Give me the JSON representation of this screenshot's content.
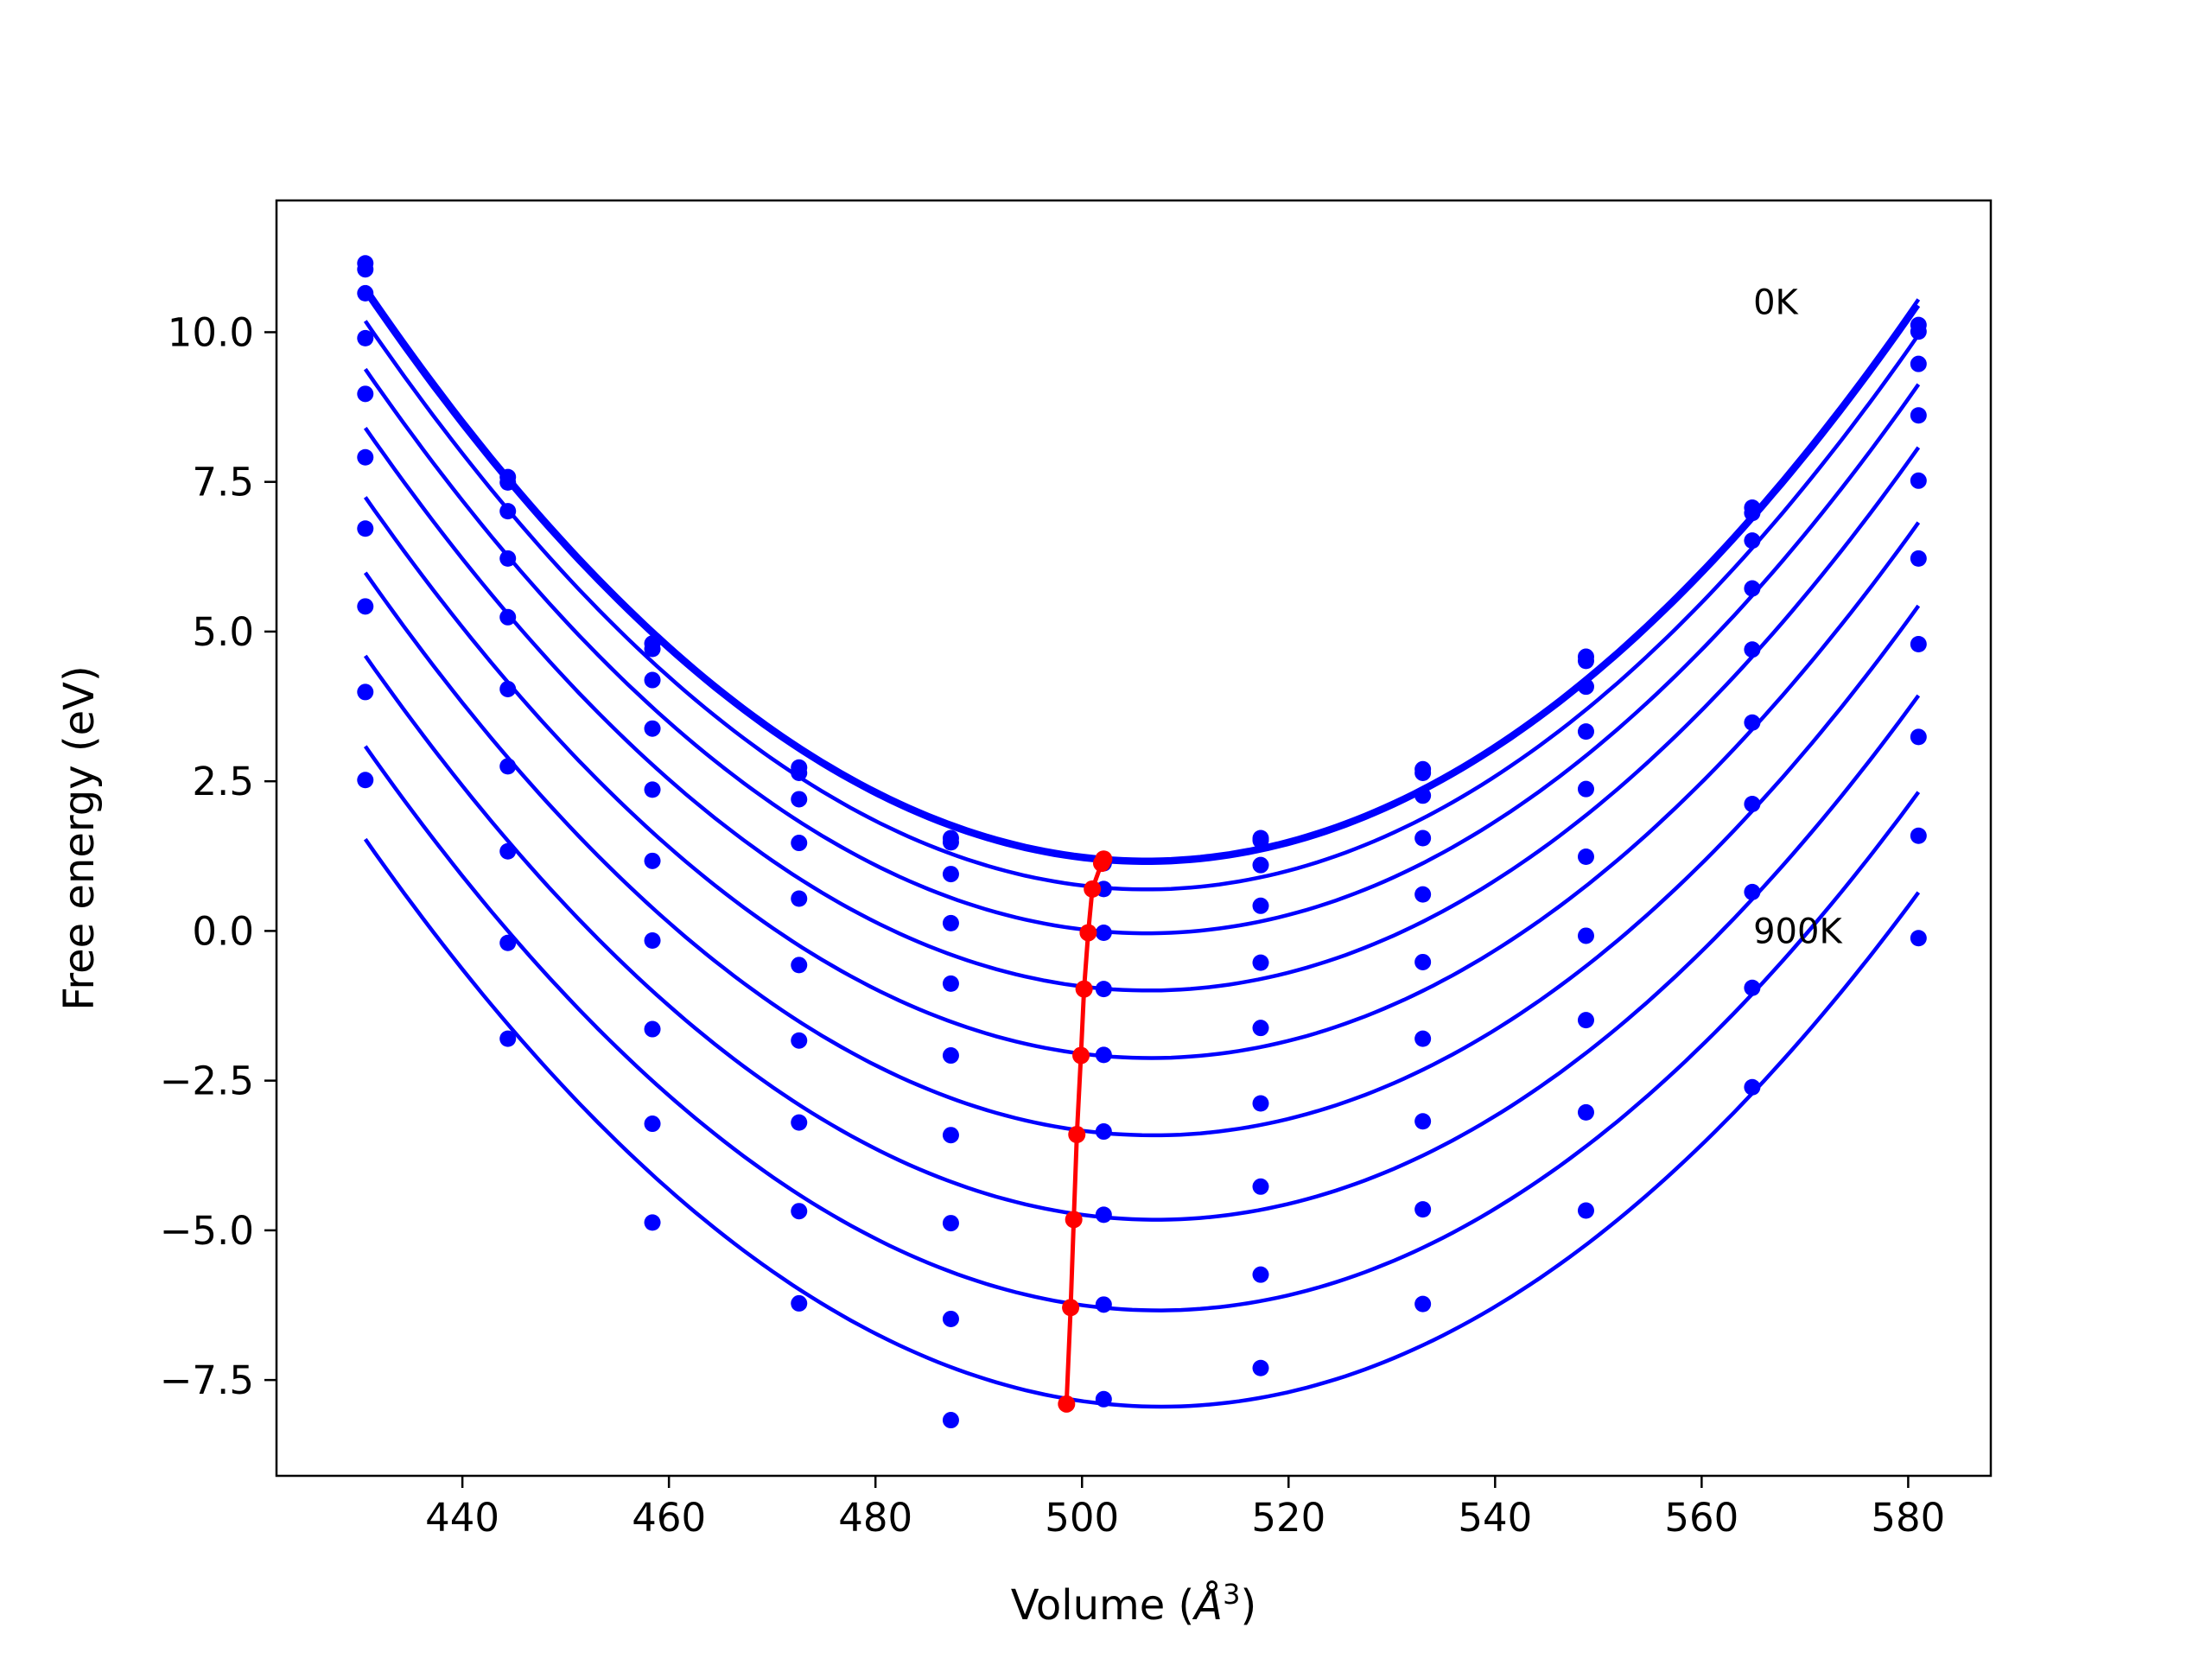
{
  "chart_data": {
    "type": "line",
    "title": "",
    "xlabel": "Volume",
    "xlabel_unit": "Å",
    "xlabel_unit_exponent": "3",
    "ylabel": "Free energy (eV)",
    "xlim": [
      422,
      588
    ],
    "ylim": [
      -9.1,
      12.2
    ],
    "x_ticks": [
      440,
      460,
      480,
      500,
      520,
      540,
      560,
      580
    ],
    "y_ticks": [
      10.0,
      7.5,
      5.0,
      2.5,
      0.0,
      -2.5,
      -5.0,
      -7.5
    ],
    "x_tick_labels": [
      "440",
      "460",
      "480",
      "500",
      "520",
      "540",
      "560",
      "580"
    ],
    "y_tick_labels": [
      "10.0",
      "7.5",
      "5.0",
      "2.5",
      "0.0",
      "−2.5",
      "−5.0",
      "−7.5"
    ],
    "grid": false,
    "annotations": [
      {
        "text": "0K",
        "x": 565,
        "y": 10.3
      },
      {
        "text": "900K",
        "x": 565,
        "y": -0.2
      }
    ],
    "sample_volumes": [
      430.6,
      444.4,
      458.4,
      472.6,
      487.3,
      502.1,
      517.3,
      533.0,
      548.8,
      564.9,
      581.0
    ],
    "series": [
      {
        "color": "#0000ff",
        "values": [
          11.15,
          7.58,
          4.8,
          2.73,
          1.55,
          1.18,
          1.55,
          2.7,
          4.58,
          7.07,
          10.12
        ]
      },
      {
        "color": "#0000ff",
        "values": [
          11.05,
          7.49,
          4.71,
          2.64,
          1.48,
          1.13,
          1.51,
          2.64,
          4.51,
          6.98,
          10.01
        ]
      },
      {
        "color": "#0000ff",
        "values": [
          10.65,
          7.01,
          4.19,
          2.2,
          0.95,
          0.7,
          1.1,
          2.26,
          4.08,
          6.52,
          9.47
        ]
      },
      {
        "color": "#0000ff",
        "values": [
          9.9,
          6.22,
          3.38,
          1.47,
          0.13,
          -0.03,
          0.42,
          1.55,
          3.33,
          5.72,
          8.61
        ]
      },
      {
        "color": "#0000ff",
        "values": [
          8.97,
          5.24,
          2.36,
          0.54,
          -0.88,
          -0.97,
          -0.53,
          0.61,
          2.37,
          4.7,
          7.52
        ]
      },
      {
        "color": "#0000ff",
        "values": [
          7.91,
          4.04,
          1.17,
          -0.57,
          -2.08,
          -2.07,
          -1.62,
          -0.52,
          1.24,
          3.48,
          6.22
        ]
      },
      {
        "color": "#0000ff",
        "values": [
          6.72,
          2.75,
          -0.16,
          -1.83,
          -3.41,
          -3.35,
          -2.88,
          -1.8,
          -0.08,
          2.12,
          4.79
        ]
      },
      {
        "color": "#0000ff",
        "values": [
          5.42,
          1.33,
          -1.64,
          -3.2,
          -4.88,
          -4.74,
          -4.27,
          -3.18,
          -1.49,
          0.65,
          3.24
        ]
      },
      {
        "color": "#0000ff",
        "values": [
          3.99,
          -0.2,
          -3.22,
          -4.68,
          -6.48,
          -6.24,
          -5.74,
          -4.65,
          -3.03,
          -0.95,
          1.59
        ]
      },
      {
        "color": "#0000ff",
        "values": [
          2.52,
          -1.8,
          -4.87,
          -6.22,
          -8.17,
          -7.82,
          -7.3,
          -6.23,
          -4.67,
          -2.61,
          -0.12
        ]
      }
    ],
    "minimum_curve": {
      "color": "#ff0000",
      "points": [
        [
          502.1,
          1.2
        ],
        [
          501.9,
          1.13
        ],
        [
          501.0,
          0.7
        ],
        [
          500.6,
          -0.03
        ],
        [
          500.2,
          -0.97
        ],
        [
          499.9,
          -2.08
        ],
        [
          499.5,
          -3.4
        ],
        [
          499.2,
          -4.82
        ],
        [
          498.9,
          -6.29
        ],
        [
          498.5,
          -7.9
        ]
      ]
    }
  }
}
